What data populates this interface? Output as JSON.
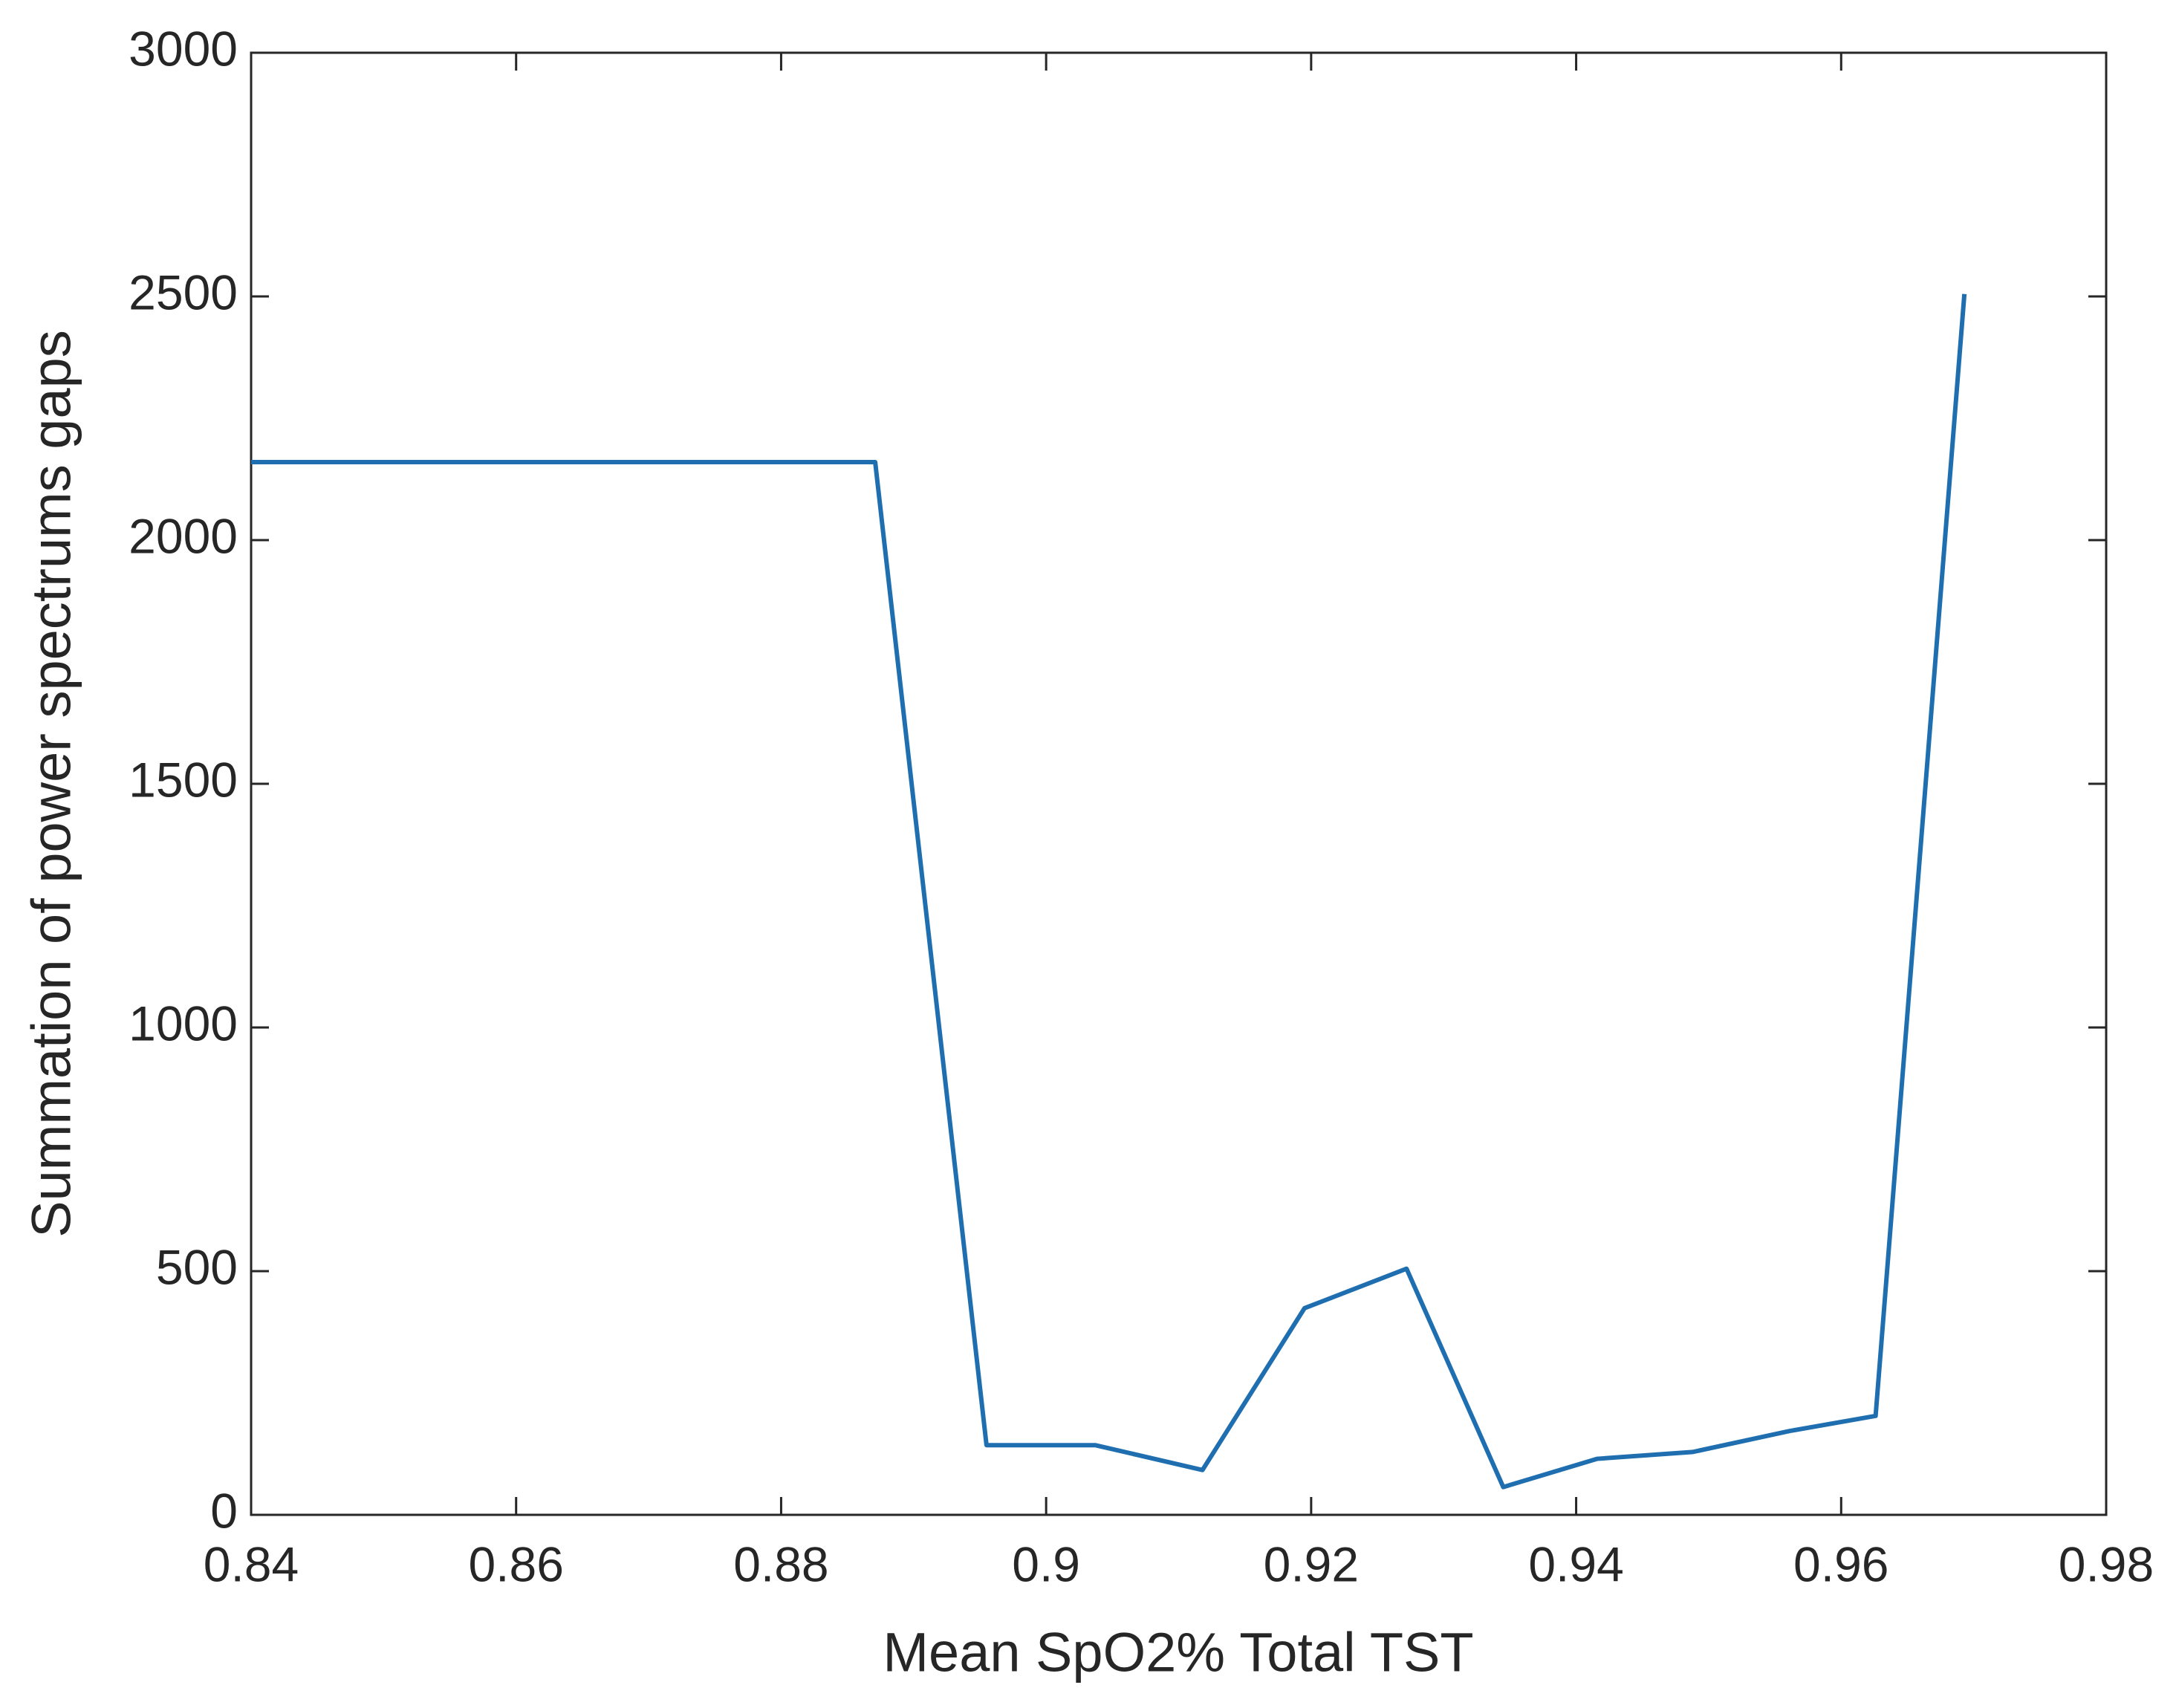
{
  "chart_data": {
    "type": "line",
    "x_label": "Mean SpO2% Total TST",
    "y_label": "Summation of power spectrums gaps",
    "x": [
      0.84,
      0.8871,
      0.8955,
      0.9037,
      0.9118,
      0.9195,
      0.9272,
      0.9345,
      0.9416,
      0.9488,
      0.9561,
      0.9626,
      0.9693
    ],
    "series": [
      {
        "color": "#1f6fb0",
        "values": [
          2160,
          2160,
          143,
          143,
          92,
          424,
          505,
          57,
          115,
          129,
          172,
          203,
          2505
        ]
      }
    ],
    "xlim": [
      0.84,
      0.98
    ],
    "xticks": [
      0.84,
      0.86,
      0.88,
      0.9,
      0.92,
      0.94,
      0.96,
      0.98
    ],
    "ylim": [
      0,
      3000
    ],
    "yticks": [
      0,
      500,
      1000,
      1500,
      2000,
      2500,
      3000
    ],
    "grid": false
  }
}
